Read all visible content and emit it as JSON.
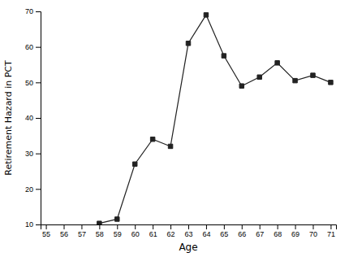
{
  "chart_data": {
    "type": "line",
    "x": [
      55,
      56,
      57,
      58,
      59,
      60,
      61,
      62,
      63,
      64,
      65,
      66,
      67,
      68,
      69,
      70,
      71
    ],
    "values": [
      null,
      null,
      null,
      10.3,
      11.5,
      27.0,
      34.0,
      32.0,
      61.0,
      69.0,
      57.5,
      49.0,
      51.5,
      55.5,
      50.5,
      52.0,
      50.0
    ],
    "color": "#222222",
    "marker": "square",
    "xlabel": "Age",
    "ylabel": "Retirement Hazard in PCT",
    "xlim": [
      54.7,
      71.3
    ],
    "ylim": [
      10,
      70
    ],
    "xticks": [
      55,
      56,
      57,
      58,
      59,
      60,
      61,
      62,
      63,
      64,
      65,
      66,
      67,
      68,
      69,
      70,
      71
    ],
    "yticks": [
      10,
      20,
      30,
      40,
      50,
      60,
      70
    ],
    "grid": false
  }
}
